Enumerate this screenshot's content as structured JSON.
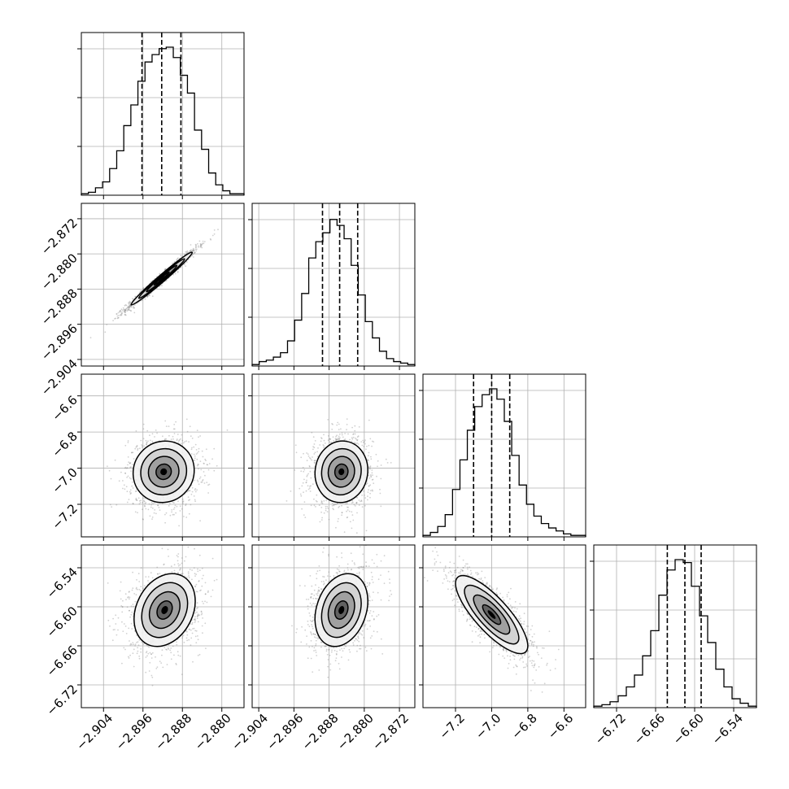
{
  "chart_data": {
    "type": "corner",
    "grid": true,
    "parameters": [
      {
        "range": [
          -2.9085,
          -2.8755
        ],
        "ticks": [
          -2.904,
          -2.896,
          -2.888,
          -2.88
        ],
        "tick_labels": [
          "−2.904",
          "−2.896",
          "−2.888",
          "−2.880"
        ],
        "quantiles": [
          -2.8962,
          -2.8922,
          -2.8883
        ],
        "hist": [
          0.01,
          0.02,
          0.05,
          0.09,
          0.18,
          0.3,
          0.47,
          0.61,
          0.77,
          0.9,
          0.95,
          0.99,
          1.0,
          0.93,
          0.81,
          0.69,
          0.44,
          0.31,
          0.15,
          0.07,
          0.03,
          0.01,
          0.01
        ]
      },
      {
        "range": [
          -2.9055,
          -2.8685
        ],
        "ticks": [
          -2.904,
          -2.896,
          -2.888,
          -2.88,
          -2.872
        ],
        "tick_labels": [
          "−2.904",
          "−2.896",
          "−2.888",
          "−2.880",
          "−2.872"
        ],
        "quantiles": [
          -2.8895,
          -2.8856,
          -2.8815
        ],
        "hist": [
          0.01,
          0.03,
          0.04,
          0.06,
          0.09,
          0.17,
          0.31,
          0.49,
          0.73,
          0.84,
          0.9,
          0.99,
          0.95,
          0.86,
          0.68,
          0.48,
          0.3,
          0.19,
          0.1,
          0.05,
          0.03,
          0.02,
          0.01
        ]
      },
      {
        "range": [
          -7.38,
          -6.48
        ],
        "ticks": [
          -7.2,
          -7.0,
          -6.8,
          -6.6
        ],
        "tick_labels": [
          "−7.2",
          "−7.0",
          "−6.8",
          "−6.6"
        ],
        "quantiles": [
          -7.1,
          -7.0,
          -6.9
        ],
        "hist": [
          0.01,
          0.03,
          0.07,
          0.15,
          0.32,
          0.52,
          0.72,
          0.88,
          0.96,
          1.0,
          0.93,
          0.78,
          0.55,
          0.35,
          0.22,
          0.14,
          0.09,
          0.06,
          0.04,
          0.02,
          0.01,
          0.01
        ]
      },
      {
        "range": [
          -6.755,
          -6.505
        ],
        "ticks": [
          -6.72,
          -6.66,
          -6.6,
          -6.54
        ],
        "tick_labels": [
          "−6.72",
          "−6.66",
          "−6.60",
          "−6.54"
        ],
        "quantiles": [
          -6.642,
          -6.615,
          -6.59
        ],
        "hist": [
          0.01,
          0.02,
          0.04,
          0.08,
          0.14,
          0.22,
          0.35,
          0.52,
          0.76,
          0.93,
          1.0,
          0.98,
          0.82,
          0.62,
          0.44,
          0.26,
          0.14,
          0.06,
          0.03,
          0.01
        ]
      }
    ],
    "pairs": [
      {
        "row": 1,
        "col": 0,
        "mean": [
          -2.8922,
          -2.8856
        ],
        "sd": [
          0.0031,
          0.003
        ],
        "corr": 0.985,
        "levels": [
          0.5,
          1.0,
          1.5,
          2.0
        ]
      },
      {
        "row": 2,
        "col": 0,
        "mean": [
          -2.8918,
          -7.02
        ],
        "sd": [
          0.0031,
          0.085
        ],
        "corr": 0.05,
        "levels": [
          0.5,
          1.0,
          1.5,
          2.0
        ]
      },
      {
        "row": 2,
        "col": 1,
        "mean": [
          -2.8852,
          -7.02
        ],
        "sd": [
          0.003,
          0.085
        ],
        "corr": 0.05,
        "levels": [
          0.5,
          1.0,
          1.5,
          2.0
        ]
      },
      {
        "row": 3,
        "col": 0,
        "mean": [
          -2.8916,
          -6.605
        ],
        "sd": [
          0.0031,
          0.028
        ],
        "corr": 0.25,
        "levels": [
          0.5,
          1.0,
          1.5,
          2.0
        ]
      },
      {
        "row": 3,
        "col": 1,
        "mean": [
          -2.8852,
          -6.605
        ],
        "sd": [
          0.003,
          0.028
        ],
        "corr": 0.25,
        "levels": [
          0.5,
          1.0,
          1.5,
          2.0
        ]
      },
      {
        "row": 3,
        "col": 2,
        "mean": [
          -7.0,
          -6.612
        ],
        "sd": [
          0.1,
          0.03
        ],
        "corr": -0.8,
        "levels": [
          0.5,
          1.0,
          1.5,
          2.0
        ]
      }
    ]
  }
}
